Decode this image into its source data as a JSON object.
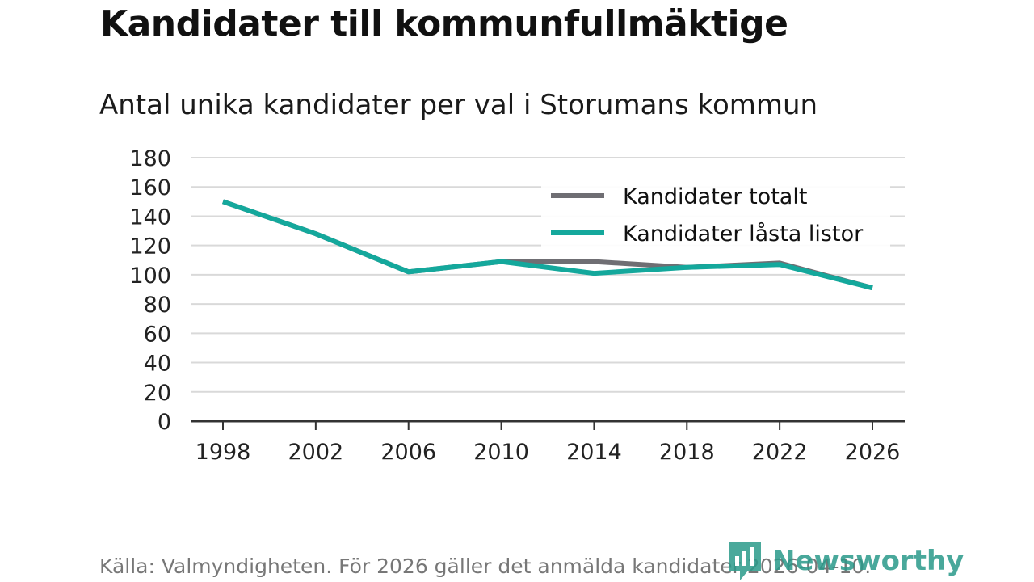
{
  "header": {
    "title": "Kandidater till kommunfullmäktige",
    "subtitle": "Antal unika kandidater per val i Storumans kommun"
  },
  "colors": {
    "total": "#6f6e73",
    "locked": "#14a89c",
    "grid": "#d9d9d9",
    "axis": "#333333"
  },
  "chart_data": {
    "type": "line",
    "title": "Kandidater till kommunfullmäktige",
    "subtitle": "Antal unika kandidater per val i Storumans kommun",
    "xlabel": "",
    "ylabel": "",
    "x": [
      1998,
      2002,
      2006,
      2010,
      2014,
      2018,
      2022,
      2026
    ],
    "x_tick_labels": [
      "1998",
      "2002",
      "2006",
      "2010",
      "2014",
      "2018",
      "2022",
      "2026"
    ],
    "ylim": [
      0,
      180
    ],
    "y_ticks": [
      0,
      20,
      40,
      60,
      80,
      100,
      120,
      140,
      160,
      180
    ],
    "y_tick_labels": [
      "0",
      "20",
      "40",
      "60",
      "80",
      "100",
      "120",
      "140",
      "160",
      "180"
    ],
    "grid": true,
    "legend_position": "top-right",
    "series": [
      {
        "name": "Kandidater totalt",
        "color": "#6f6e73",
        "values": [
          150,
          128,
          102,
          109,
          109,
          105,
          108,
          91
        ]
      },
      {
        "name": "Kandidater låsta listor",
        "color": "#14a89c",
        "values": [
          150,
          128,
          102,
          109,
          101,
          105,
          107,
          91
        ]
      }
    ]
  },
  "footer": {
    "source": "Källa: Valmyndigheten. För 2026 gäller det anmälda kandidater 2026-04-10.",
    "brand": "Newsworthy",
    "brand_icon": "newsworthy-logo-icon"
  }
}
